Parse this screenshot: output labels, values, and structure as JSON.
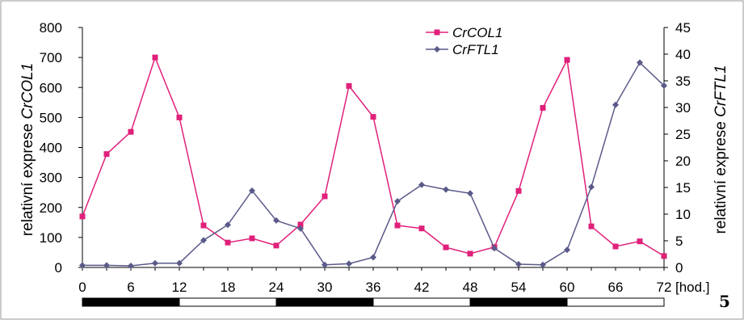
{
  "chart_data": {
    "type": "line",
    "x": [
      0,
      3,
      6,
      9,
      12,
      15,
      18,
      21,
      24,
      27,
      30,
      33,
      36,
      39,
      42,
      45,
      48,
      51,
      54,
      57,
      60,
      63,
      66,
      69,
      72
    ],
    "x_ticks": [
      "0",
      "6",
      "12",
      "18",
      "24",
      "30",
      "36",
      "42",
      "48",
      "54",
      "60",
      "66",
      "72"
    ],
    "x_unit": "[hod.]",
    "y_left_ticks": [
      "0",
      "100",
      "200",
      "300",
      "400",
      "500",
      "600",
      "700",
      "800"
    ],
    "y_right_ticks": [
      "0",
      "5",
      "10",
      "15",
      "20",
      "25",
      "30",
      "35",
      "40",
      "45"
    ],
    "ylim_left": [
      0,
      800
    ],
    "ylim_right": [
      0,
      45
    ],
    "ylabel_left_prefix": "relativní exprese ",
    "ylabel_left_gene": "CrCOL1",
    "ylabel_right_prefix": "relativní exprese ",
    "ylabel_right_gene": "CrFTL1",
    "series": [
      {
        "name": "CrCOL1",
        "axis": "left",
        "color": "#e0207a",
        "marker": "square",
        "values": [
          170,
          378,
          452,
          700,
          500,
          140,
          83,
          97,
          73,
          143,
          237,
          605,
          502,
          140,
          130,
          67,
          46,
          68,
          255,
          532,
          692,
          137,
          70,
          87,
          38
        ]
      },
      {
        "name": "CrFTL1",
        "axis": "right",
        "color": "#5a5a8a",
        "marker": "diamond",
        "values": [
          0.4,
          0.4,
          0.3,
          0.8,
          0.8,
          5.1,
          8.0,
          14.4,
          8.8,
          7.3,
          0.5,
          0.7,
          1.9,
          12.4,
          15.5,
          14.6,
          13.9,
          3.6,
          0.6,
          0.5,
          3.3,
          15.1,
          30.5,
          38.4,
          34.1
        ]
      }
    ],
    "photoperiod_bar": [
      {
        "from": 0,
        "to": 12,
        "state": "dark"
      },
      {
        "from": 12,
        "to": 24,
        "state": "light"
      },
      {
        "from": 24,
        "to": 36,
        "state": "dark"
      },
      {
        "from": 36,
        "to": 48,
        "state": "light"
      },
      {
        "from": 48,
        "to": 60,
        "state": "dark"
      },
      {
        "from": 60,
        "to": 72,
        "state": "light"
      }
    ],
    "legend_position": "top-center",
    "grid": false
  },
  "figure_number": "5"
}
